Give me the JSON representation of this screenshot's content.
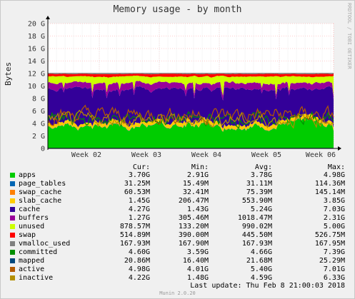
{
  "title": "Memory usage - by month",
  "side_text": "RRDTOOL / TOBI OETIKER",
  "footer": "Munin 2.0.20",
  "last_update": "Last update: Thu Feb  8 21:00:03 2018",
  "legend_headers": {
    "cur": "Cur:",
    "min": "Min:",
    "avg": "Avg:",
    "max": "Max:"
  },
  "legend": [
    {
      "name": "apps",
      "color": "#00cc00",
      "cur": "3.70G",
      "min": "2.91G",
      "avg": "3.78G",
      "max": "4.98G"
    },
    {
      "name": "page_tables",
      "color": "#0066b3",
      "cur": "31.25M",
      "min": "15.49M",
      "avg": "31.11M",
      "max": "114.36M"
    },
    {
      "name": "swap_cache",
      "color": "#ff8000",
      "cur": "60.53M",
      "min": "32.41M",
      "avg": "75.39M",
      "max": "145.14M"
    },
    {
      "name": "slab_cache",
      "color": "#ffcc00",
      "cur": "1.45G",
      "min": "206.47M",
      "avg": "553.90M",
      "max": "3.85G"
    },
    {
      "name": "cache",
      "color": "#330099",
      "cur": "4.27G",
      "min": "1.43G",
      "avg": "5.24G",
      "max": "7.03G"
    },
    {
      "name": "buffers",
      "color": "#990099",
      "cur": "1.27G",
      "min": "305.46M",
      "avg": "1018.47M",
      "max": "2.31G"
    },
    {
      "name": "unused",
      "color": "#ccff00",
      "cur": "878.57M",
      "min": "133.20M",
      "avg": "990.02M",
      "max": "5.00G"
    },
    {
      "name": "swap",
      "color": "#ff0000",
      "cur": "514.89M",
      "min": "390.00M",
      "avg": "445.50M",
      "max": "526.75M"
    },
    {
      "name": "vmalloc_used",
      "color": "#808080",
      "cur": "167.93M",
      "min": "167.90M",
      "avg": "167.93M",
      "max": "167.95M"
    },
    {
      "name": "committed",
      "color": "#008f00",
      "cur": "4.60G",
      "min": "3.59G",
      "avg": "4.66G",
      "max": "7.39G"
    },
    {
      "name": "mapped",
      "color": "#00487d",
      "cur": "20.86M",
      "min": "16.40M",
      "avg": "21.68M",
      "max": "25.29M"
    },
    {
      "name": "active",
      "color": "#b35a00",
      "cur": "4.98G",
      "min": "4.01G",
      "avg": "5.40G",
      "max": "7.01G"
    },
    {
      "name": "inactive",
      "color": "#b38f00",
      "cur": "4.22G",
      "min": "1.48G",
      "avg": "4.59G",
      "max": "6.33G"
    }
  ],
  "chart_data": {
    "type": "area",
    "title": "Memory usage - by month",
    "ylabel": "Bytes",
    "ylim": [
      0,
      20
    ],
    "y_unit": "G",
    "y_ticks": [
      "0",
      "2 G",
      "4 G",
      "6 G",
      "8 G",
      "10 G",
      "12 G",
      "14 G",
      "16 G",
      "18 G",
      "20 G"
    ],
    "x_ticks": [
      "Week 02",
      "Week 03",
      "Week 04",
      "Week 05",
      "Week 06"
    ],
    "grid": true,
    "stacked_series_approx_avg_gb": [
      {
        "name": "apps",
        "value": 3.78
      },
      {
        "name": "page_tables",
        "value": 0.03
      },
      {
        "name": "swap_cache",
        "value": 0.07
      },
      {
        "name": "slab_cache",
        "value": 0.55
      },
      {
        "name": "cache",
        "value": 5.24
      },
      {
        "name": "buffers",
        "value": 1.0
      },
      {
        "name": "unused",
        "value": 0.99
      },
      {
        "name": "swap",
        "value": 0.45
      },
      {
        "name": "vmalloc_used",
        "value": 0.17
      }
    ],
    "line_series_approx_avg_gb": [
      {
        "name": "committed",
        "value": 4.66
      },
      {
        "name": "mapped",
        "value": 0.02
      },
      {
        "name": "active",
        "value": 5.4
      },
      {
        "name": "inactive",
        "value": 4.59
      }
    ]
  }
}
